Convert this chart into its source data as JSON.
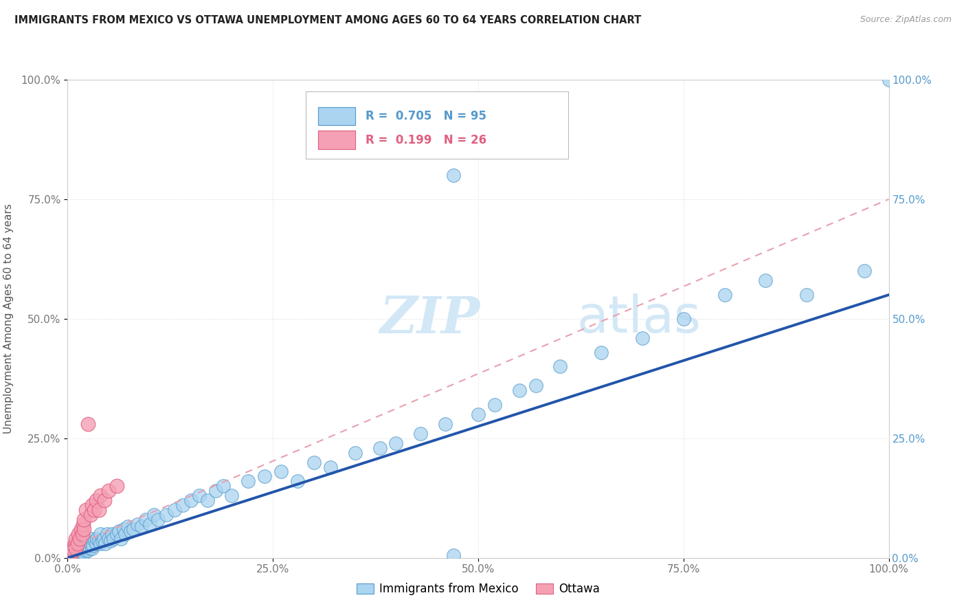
{
  "title": "IMMIGRANTS FROM MEXICO VS OTTAWA UNEMPLOYMENT AMONG AGES 60 TO 64 YEARS CORRELATION CHART",
  "source": "Source: ZipAtlas.com",
  "ylabel": "Unemployment Among Ages 60 to 64 years",
  "legend_label_blue": "Immigrants from Mexico",
  "legend_label_pink": "Ottawa",
  "R_blue": 0.705,
  "N_blue": 95,
  "R_pink": 0.199,
  "N_pink": 26,
  "blue_fill": "#aad4f0",
  "blue_edge": "#5599cc",
  "pink_fill": "#f5a0b5",
  "pink_edge": "#e06080",
  "blue_line_color": "#2255aa",
  "pink_line_color": "#dd5577",
  "pink_dash_color": "#e8a0b0",
  "axis_right_color": "#5599cc",
  "axis_left_color": "#777777",
  "watermark_color": "#cce4f5",
  "background_color": "#ffffff",
  "grid_color": "#dddddd",
  "xlim": [
    0.0,
    1.0
  ],
  "ylim": [
    0.0,
    1.0
  ],
  "xticks": [
    0.0,
    0.25,
    0.5,
    0.75,
    1.0
  ],
  "yticks": [
    0.0,
    0.25,
    0.5,
    0.75,
    1.0
  ],
  "xtick_labels": [
    "0.0%",
    "25.0%",
    "50.0%",
    "75.0%",
    "100.0%"
  ],
  "ytick_labels": [
    "0.0%",
    "25.0%",
    "50.0%",
    "75.0%",
    "100.0%"
  ],
  "blue_trend_x": [
    0.0,
    1.0
  ],
  "blue_trend_y": [
    0.0,
    0.55
  ],
  "pink_trend_x": [
    0.0,
    1.0
  ],
  "pink_trend_y": [
    0.02,
    0.75
  ],
  "blue_x": [
    0.005,
    0.007,
    0.008,
    0.009,
    0.01,
    0.01,
    0.01,
    0.01,
    0.01,
    0.012,
    0.013,
    0.014,
    0.015,
    0.015,
    0.016,
    0.017,
    0.018,
    0.019,
    0.02,
    0.02,
    0.02,
    0.021,
    0.022,
    0.023,
    0.024,
    0.025,
    0.026,
    0.027,
    0.028,
    0.03,
    0.03,
    0.031,
    0.033,
    0.035,
    0.036,
    0.038,
    0.04,
    0.04,
    0.042,
    0.044,
    0.046,
    0.048,
    0.05,
    0.052,
    0.054,
    0.056,
    0.06,
    0.062,
    0.065,
    0.068,
    0.07,
    0.073,
    0.077,
    0.08,
    0.085,
    0.09,
    0.095,
    0.1,
    0.105,
    0.11,
    0.12,
    0.13,
    0.14,
    0.15,
    0.16,
    0.17,
    0.18,
    0.19,
    0.2,
    0.22,
    0.24,
    0.26,
    0.28,
    0.3,
    0.32,
    0.35,
    0.38,
    0.4,
    0.43,
    0.46,
    0.47,
    0.47,
    0.5,
    0.52,
    0.55,
    0.57,
    0.6,
    0.65,
    0.7,
    0.75,
    0.8,
    0.85,
    0.9,
    0.97,
    1.0
  ],
  "blue_y": [
    0.005,
    0.008,
    0.01,
    0.007,
    0.01,
    0.01,
    0.015,
    0.012,
    0.02,
    0.01,
    0.015,
    0.018,
    0.01,
    0.025,
    0.012,
    0.02,
    0.015,
    0.022,
    0.01,
    0.02,
    0.03,
    0.015,
    0.025,
    0.02,
    0.03,
    0.015,
    0.025,
    0.02,
    0.03,
    0.02,
    0.04,
    0.025,
    0.035,
    0.03,
    0.04,
    0.035,
    0.03,
    0.05,
    0.035,
    0.04,
    0.03,
    0.05,
    0.04,
    0.035,
    0.05,
    0.04,
    0.05,
    0.055,
    0.04,
    0.06,
    0.05,
    0.065,
    0.055,
    0.06,
    0.07,
    0.065,
    0.08,
    0.07,
    0.09,
    0.08,
    0.09,
    0.1,
    0.11,
    0.12,
    0.13,
    0.12,
    0.14,
    0.15,
    0.13,
    0.16,
    0.17,
    0.18,
    0.16,
    0.2,
    0.19,
    0.22,
    0.23,
    0.24,
    0.26,
    0.28,
    0.005,
    0.8,
    0.3,
    0.32,
    0.35,
    0.36,
    0.4,
    0.43,
    0.46,
    0.5,
    0.55,
    0.58,
    0.55,
    0.6,
    1.0
  ],
  "pink_x": [
    0.005,
    0.006,
    0.007,
    0.008,
    0.009,
    0.01,
    0.01,
    0.012,
    0.013,
    0.015,
    0.016,
    0.018,
    0.019,
    0.02,
    0.02,
    0.022,
    0.025,
    0.028,
    0.03,
    0.032,
    0.035,
    0.038,
    0.04,
    0.045,
    0.05,
    0.06
  ],
  "pink_y": [
    0.01,
    0.02,
    0.015,
    0.025,
    0.03,
    0.02,
    0.04,
    0.03,
    0.05,
    0.04,
    0.06,
    0.05,
    0.07,
    0.06,
    0.08,
    0.1,
    0.28,
    0.09,
    0.11,
    0.1,
    0.12,
    0.1,
    0.13,
    0.12,
    0.14,
    0.15
  ]
}
